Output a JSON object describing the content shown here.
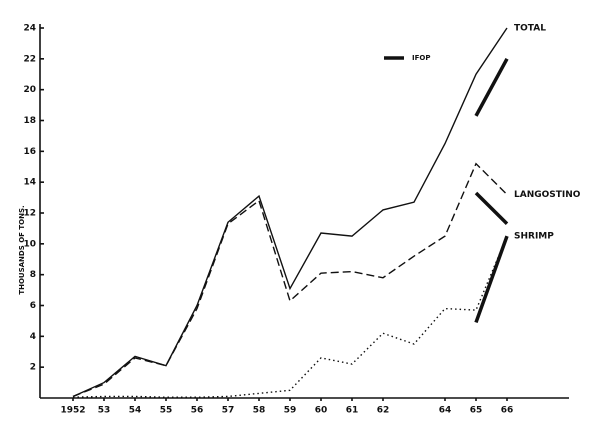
{
  "chart_data": {
    "type": "line",
    "y_label": "THOUSANDS OF TONS.",
    "x": [
      1952,
      1953,
      1954,
      1955,
      1956,
      1957,
      1958,
      1959,
      1960,
      1961,
      1962,
      1963,
      1964,
      1965,
      1966
    ],
    "series": [
      {
        "name": "TOTAL",
        "color": "#111111",
        "style": "solid",
        "values": [
          0.1,
          1.0,
          2.7,
          2.1,
          6.0,
          11.4,
          13.1,
          7.1,
          10.7,
          10.5,
          12.2,
          12.7,
          16.5,
          21.0,
          24.0
        ]
      },
      {
        "name": "LANGOSTINO",
        "color": "#111111",
        "style": "dashed",
        "values": [
          0.1,
          0.9,
          2.6,
          2.1,
          5.8,
          11.3,
          12.8,
          6.3,
          8.1,
          8.2,
          7.8,
          9.2,
          10.5,
          15.2,
          13.2
        ]
      },
      {
        "name": "SHRIMP",
        "color": "#111111",
        "style": "dotted",
        "values": [
          0.05,
          0.1,
          0.1,
          0.05,
          0.05,
          0.1,
          0.3,
          0.5,
          2.6,
          2.2,
          4.2,
          3.5,
          5.8,
          5.7,
          10.5
        ]
      }
    ],
    "ifop": {
      "name": "IFOP",
      "color": "#111111",
      "x": [
        1965,
        1966
      ],
      "segments": [
        [
          18.3,
          22.0
        ],
        [
          13.3,
          11.3
        ],
        [
          4.9,
          10.5
        ]
      ]
    },
    "xlim": [
      1951,
      1968
    ],
    "xticks": [
      {
        "value": 1952,
        "label": "1952"
      },
      {
        "value": 1953,
        "label": "53"
      },
      {
        "value": 1954,
        "label": "54"
      },
      {
        "value": 1955,
        "label": "55"
      },
      {
        "value": 1956,
        "label": "56"
      },
      {
        "value": 1957,
        "label": "57"
      },
      {
        "value": 1958,
        "label": "58"
      },
      {
        "value": 1959,
        "label": "59"
      },
      {
        "value": 1960,
        "label": "60"
      },
      {
        "value": 1961,
        "label": "61"
      },
      {
        "value": 1962,
        "label": "62"
      },
      {
        "value": 1964,
        "label": "64"
      },
      {
        "value": 1965,
        "label": "65"
      },
      {
        "value": 1966,
        "label": "66"
      }
    ],
    "ylim": [
      0,
      24
    ],
    "yticks": [
      2,
      4,
      6,
      8,
      10,
      12,
      14,
      16,
      18,
      20,
      22,
      24
    ]
  }
}
